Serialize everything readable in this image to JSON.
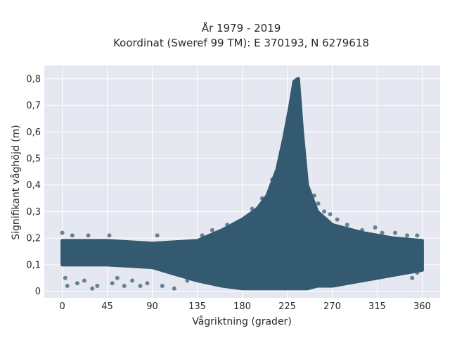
{
  "chart_data": {
    "type": "scatter",
    "title_line1": "År 1979 - 2019",
    "title_line2": "Koordinat (Sweref 99 TM): E 370193, N 6279618",
    "xlabel": "Vågriktning (grader)",
    "ylabel": "Signifikant våghöjd (m)",
    "xlim": [
      -18,
      378
    ],
    "ylim": [
      -0.025,
      0.85
    ],
    "xticks": [
      0,
      45,
      90,
      135,
      180,
      225,
      270,
      315,
      360
    ],
    "xtick_labels": [
      "0",
      "45",
      "90",
      "135",
      "180",
      "225",
      "270",
      "315",
      "360"
    ],
    "yticks": [
      0,
      0.1,
      0.2,
      0.3,
      0.4,
      0.5,
      0.6,
      0.7,
      0.8
    ],
    "ytick_labels": [
      "0",
      "0,1",
      "0,2",
      "0,3",
      "0,4",
      "0,5",
      "0,6",
      "0,7",
      "0,8"
    ],
    "grid": true,
    "legend": "none",
    "point_color": "#335a70",
    "background_color": "#e5e8f0",
    "envelope": {
      "x": [
        0,
        45,
        90,
        135,
        160,
        180,
        195,
        205,
        215,
        222,
        228,
        232,
        236,
        240,
        245,
        255,
        270,
        300,
        330,
        360
      ],
      "y_low": [
        0.1,
        0.1,
        0.09,
        0.04,
        0.02,
        0.01,
        0.01,
        0.01,
        0.01,
        0.01,
        0.01,
        0.01,
        0.01,
        0.01,
        0.01,
        0.02,
        0.02,
        0.04,
        0.06,
        0.08
      ],
      "y_high": [
        0.19,
        0.19,
        0.18,
        0.19,
        0.23,
        0.27,
        0.31,
        0.36,
        0.46,
        0.58,
        0.7,
        0.79,
        0.8,
        0.6,
        0.4,
        0.3,
        0.25,
        0.22,
        0.2,
        0.19
      ]
    },
    "points": [
      {
        "x": 0,
        "y": 0.22
      },
      {
        "x": 3,
        "y": 0.05
      },
      {
        "x": 5,
        "y": 0.02
      },
      {
        "x": 10,
        "y": 0.21
      },
      {
        "x": 15,
        "y": 0.03
      },
      {
        "x": 22,
        "y": 0.04
      },
      {
        "x": 26,
        "y": 0.21
      },
      {
        "x": 30,
        "y": 0.01
      },
      {
        "x": 35,
        "y": 0.02
      },
      {
        "x": 47,
        "y": 0.21
      },
      {
        "x": 50,
        "y": 0.03
      },
      {
        "x": 55,
        "y": 0.05
      },
      {
        "x": 62,
        "y": 0.02
      },
      {
        "x": 70,
        "y": 0.04
      },
      {
        "x": 78,
        "y": 0.02
      },
      {
        "x": 85,
        "y": 0.03
      },
      {
        "x": 95,
        "y": 0.21
      },
      {
        "x": 100,
        "y": 0.02
      },
      {
        "x": 112,
        "y": 0.01
      },
      {
        "x": 125,
        "y": 0.04
      },
      {
        "x": 140,
        "y": 0.21
      },
      {
        "x": 150,
        "y": 0.23
      },
      {
        "x": 165,
        "y": 0.25
      },
      {
        "x": 190,
        "y": 0.31
      },
      {
        "x": 200,
        "y": 0.35
      },
      {
        "x": 210,
        "y": 0.42
      },
      {
        "x": 252,
        "y": 0.36
      },
      {
        "x": 256,
        "y": 0.33
      },
      {
        "x": 262,
        "y": 0.3
      },
      {
        "x": 268,
        "y": 0.29
      },
      {
        "x": 275,
        "y": 0.27
      },
      {
        "x": 285,
        "y": 0.25
      },
      {
        "x": 300,
        "y": 0.23
      },
      {
        "x": 313,
        "y": 0.24
      },
      {
        "x": 320,
        "y": 0.22
      },
      {
        "x": 333,
        "y": 0.22
      },
      {
        "x": 345,
        "y": 0.21
      },
      {
        "x": 355,
        "y": 0.21
      },
      {
        "x": 358,
        "y": 0.12
      },
      {
        "x": 358,
        "y": 0.09
      },
      {
        "x": 355,
        "y": 0.07
      },
      {
        "x": 350,
        "y": 0.05
      }
    ]
  }
}
